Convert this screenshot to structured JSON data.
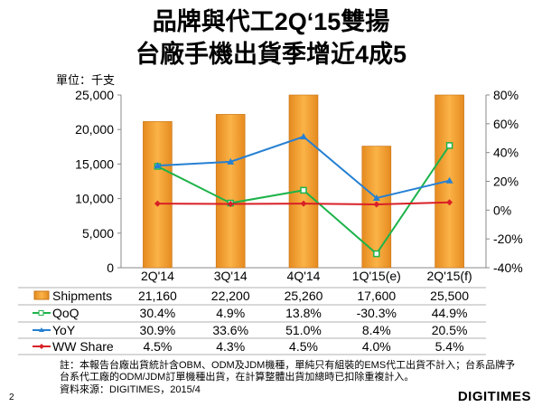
{
  "title_line1": "品牌與代工2Q‘15雙揚",
  "title_line2": "台廠手機出貨季增近4成5",
  "unit_label": "單位：千支",
  "chart_data": {
    "type": "bar+line",
    "categories": [
      "2Q'14",
      "3Q'14",
      "4Q'14",
      "1Q'15(e)",
      "2Q'15(f)"
    ],
    "left_axis": {
      "ylim": [
        0,
        25000
      ],
      "ticks": [
        0,
        5000,
        10000,
        15000,
        20000,
        25000
      ],
      "tick_labels": [
        "0",
        "5,000",
        "10,000",
        "15,000",
        "20,000",
        "25,000"
      ]
    },
    "right_axis": {
      "ylim": [
        -40,
        80
      ],
      "ticks": [
        -40,
        -20,
        0,
        20,
        40,
        60,
        80
      ],
      "tick_labels": [
        "-40%",
        "-20%",
        "0%",
        "20%",
        "40%",
        "60%",
        "80%"
      ]
    },
    "series": [
      {
        "name": "Shipments",
        "type": "bar",
        "axis": "left",
        "color": "#F7A435",
        "values": [
          21160,
          22200,
          25260,
          17600,
          25500
        ],
        "labels": [
          "21,160",
          "22,200",
          "25,260",
          "17,600",
          "25,500"
        ]
      },
      {
        "name": "QoQ",
        "type": "line",
        "axis": "right",
        "color": "#1DB34A",
        "marker": "square",
        "values": [
          30.4,
          4.9,
          13.8,
          -30.3,
          44.9
        ],
        "labels": [
          "30.4%",
          "4.9%",
          "13.8%",
          "-30.3%",
          "44.9%"
        ]
      },
      {
        "name": "YoY",
        "type": "line",
        "axis": "right",
        "color": "#2680D3",
        "marker": "triangle",
        "values": [
          30.9,
          33.6,
          51.0,
          8.4,
          20.5
        ],
        "labels": [
          "30.9%",
          "33.6%",
          "51.0%",
          "8.4%",
          "20.5%"
        ]
      },
      {
        "name": "WW Share",
        "type": "line",
        "axis": "right",
        "color": "#D92027",
        "marker": "diamond",
        "values": [
          4.5,
          4.3,
          4.5,
          4.0,
          5.4
        ],
        "labels": [
          "4.5%",
          "4.3%",
          "4.5%",
          "4.0%",
          "5.4%"
        ]
      }
    ],
    "grid": false
  },
  "notes": [
    "註：本報告台廠出貨統計含OBM、ODM及JDM機種，單純只有組裝的EMS代工出貨不計入；台系品牌予",
    "台系代工廠的ODM/JDM訂單機種出貨，在計算整體出貨加總時已扣除重複計入。",
    "資料來源：DIGITIMES，2015/4"
  ],
  "page_number": "2",
  "logo": "DIGITIMES"
}
